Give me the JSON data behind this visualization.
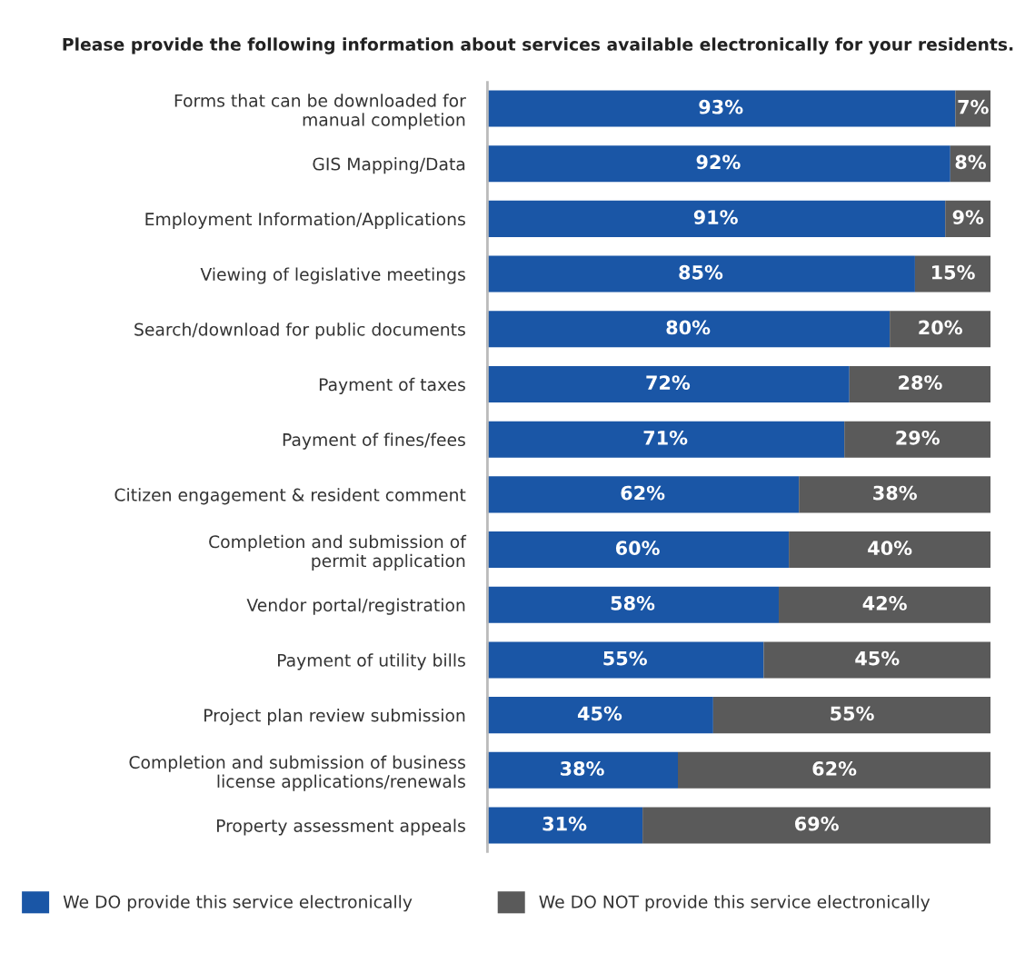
{
  "chart_data": {
    "type": "bar",
    "orientation": "horizontal",
    "stacked": true,
    "title": "Please provide the following information about services available electronically for your residents.",
    "categories": [
      "Forms that can be downloaded for\nmanual completion",
      "GIS Mapping/Data",
      "Employment Information/Applications",
      "Viewing of legislative meetings",
      "Search/download for public documents",
      "Payment of taxes",
      "Payment of fines/fees",
      "Citizen engagement & resident comment",
      "Completion and submission of\npermit application",
      "Vendor portal/registration",
      "Payment of utility bills",
      "Project plan review submission",
      "Completion and submission of business\nlicense applications/renewals",
      "Property assessment appeals"
    ],
    "series": [
      {
        "name": "We DO provide this service electronically",
        "color": "#1a56a6",
        "values": [
          93,
          92,
          91,
          85,
          80,
          72,
          71,
          62,
          60,
          58,
          55,
          45,
          38,
          31
        ],
        "value_labels": [
          "93%",
          "92%",
          "91%",
          "85%",
          "80%",
          "72%",
          "71%",
          "62%",
          "60%",
          "58%",
          "55%",
          "45%",
          "38%",
          "31%"
        ]
      },
      {
        "name": "We DO NOT provide this service electronically",
        "color": "#5a5a5a",
        "values": [
          7,
          8,
          9,
          15,
          20,
          28,
          29,
          38,
          40,
          42,
          45,
          55,
          62,
          69
        ],
        "value_labels": [
          "7%",
          "8%",
          "9%",
          "15%",
          "20%",
          "28%",
          "29%",
          "38%",
          "40%",
          "42%",
          "45%",
          "55%",
          "62%",
          "69%"
        ]
      }
    ],
    "legend": "bottom",
    "grid": false
  }
}
